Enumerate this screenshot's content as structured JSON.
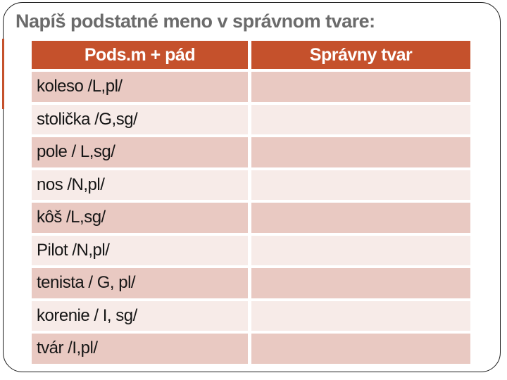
{
  "slide": {
    "title": "Napíš podstatné meno v správnom tvare:",
    "colors": {
      "accent_orange": "#c5512c",
      "row_dark_pink": "#e9c9c2",
      "row_light_pink": "#f7ebe8",
      "title_gray": "#6b6b6b",
      "frame_black": "#1c1c1c",
      "header_text": "#ffffff",
      "cell_text": "#161616"
    },
    "table": {
      "columns": [
        {
          "label": "Pods.m + pád"
        },
        {
          "label": "Správny tvar"
        }
      ],
      "rows": [
        {
          "prompt": "koleso /L,pl/",
          "answer": ""
        },
        {
          "prompt": "stolička /G,sg/",
          "answer": ""
        },
        {
          "prompt": "pole / L,sg/",
          "answer": ""
        },
        {
          "prompt": "nos /N,pl/",
          "answer": ""
        },
        {
          "prompt": "kôš /L,sg/",
          "answer": ""
        },
        {
          "prompt": "Pilot /N,pl/",
          "answer": ""
        },
        {
          "prompt": "tenista / G, pl/",
          "answer": ""
        },
        {
          "prompt": "korenie / I, sg/",
          "answer": ""
        },
        {
          "prompt": "tvár /I,pl/",
          "answer": ""
        }
      ]
    }
  }
}
